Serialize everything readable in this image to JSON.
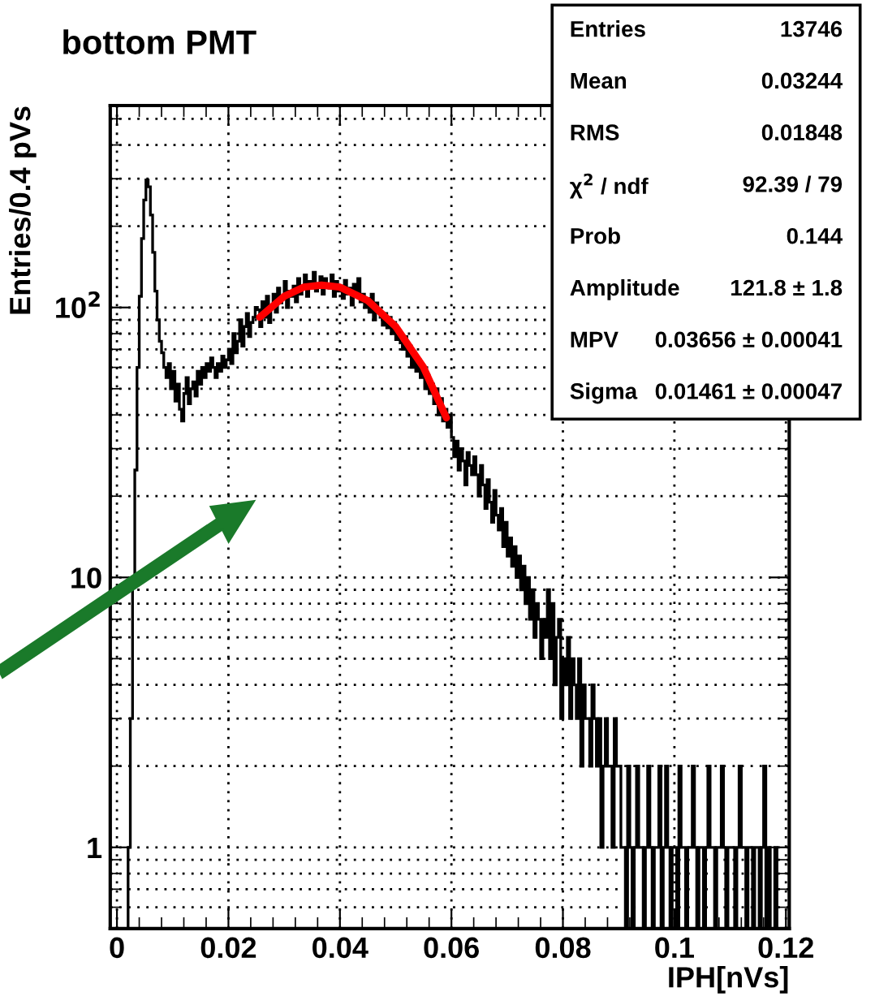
{
  "chart_data": {
    "type": "histogram",
    "title": "bottom PMT",
    "xlabel": "IPH[nVs]",
    "ylabel": "Entries/0.4 pVs",
    "bins": [
      0,
      0.0004,
      0.0008,
      0.0012,
      0.0016,
      0.002,
      0.0024,
      0.0028,
      0.0032,
      0.0036,
      0.004,
      0.0044,
      0.0048,
      0.0052,
      0.0056,
      0.006,
      0.0064,
      0.0068,
      0.0072,
      0.0076,
      0.008,
      0.0084,
      0.0088,
      0.0092,
      0.0096,
      0.01,
      0.0104,
      0.0108,
      0.0112,
      0.0116,
      0.012,
      0.0124,
      0.0128,
      0.0132,
      0.0136,
      0.014,
      0.0144,
      0.0148,
      0.0152,
      0.0156,
      0.016,
      0.0164,
      0.0168,
      0.0172,
      0.0176,
      0.018,
      0.0184,
      0.0188,
      0.0192,
      0.0196,
      0.02,
      0.0204,
      0.0208,
      0.0212,
      0.0216,
      0.022,
      0.0224,
      0.0228,
      0.0232,
      0.0236,
      0.024,
      0.0244,
      0.0248,
      0.0252,
      0.0256,
      0.026,
      0.0264,
      0.0268,
      0.0272,
      0.0276,
      0.028,
      0.0284,
      0.0288,
      0.0292,
      0.0296,
      0.03,
      0.0304,
      0.0308,
      0.0312,
      0.0316,
      0.032,
      0.0324,
      0.0328,
      0.0332,
      0.0336,
      0.034,
      0.0344,
      0.0348,
      0.0352,
      0.0356,
      0.036,
      0.0364,
      0.0368,
      0.0372,
      0.0376,
      0.038,
      0.0384,
      0.0388,
      0.0392,
      0.0396,
      0.04,
      0.0404,
      0.0408,
      0.0412,
      0.0416,
      0.042,
      0.0424,
      0.0428,
      0.0432,
      0.0436,
      0.044,
      0.0444,
      0.0448,
      0.0452,
      0.0456,
      0.046,
      0.0464,
      0.0468,
      0.0472,
      0.0476,
      0.048,
      0.0484,
      0.0488,
      0.0492,
      0.0496,
      0.05,
      0.0504,
      0.0508,
      0.0512,
      0.0516,
      0.052,
      0.0524,
      0.0528,
      0.0532,
      0.0536,
      0.054,
      0.0544,
      0.0548,
      0.0552,
      0.0556,
      0.056,
      0.0564,
      0.0568,
      0.0572,
      0.0576,
      0.058,
      0.0584,
      0.0588,
      0.0592,
      0.0596,
      0.06,
      0.0604,
      0.0608,
      0.0612,
      0.0616,
      0.062,
      0.0624,
      0.0628,
      0.0632,
      0.0636,
      0.064,
      0.0644,
      0.0648,
      0.0652,
      0.0656,
      0.066,
      0.0664,
      0.0668,
      0.0672,
      0.0676,
      0.068,
      0.0684,
      0.0688,
      0.0692,
      0.0696,
      0.07,
      0.0704,
      0.0708,
      0.0712,
      0.0716,
      0.072,
      0.0724,
      0.0728,
      0.0732,
      0.0736,
      0.074,
      0.0744,
      0.0748,
      0.0752,
      0.0756,
      0.076,
      0.0764,
      0.0768,
      0.0772,
      0.0776,
      0.078,
      0.0784,
      0.0788,
      0.0792,
      0.0796,
      0.08,
      0.0804,
      0.0808,
      0.0812,
      0.0816,
      0.082,
      0.0824,
      0.0828,
      0.0832,
      0.0836,
      0.084,
      0.0844,
      0.0848,
      0.0852,
      0.0856,
      0.086,
      0.0864,
      0.0868,
      0.0872,
      0.0876,
      0.088,
      0.0884,
      0.0888,
      0.0892,
      0.0896,
      0.09,
      0.0904,
      0.0908,
      0.0912,
      0.0916,
      0.092,
      0.0924,
      0.0928,
      0.0932,
      0.0936,
      0.094,
      0.0944,
      0.0948,
      0.0952,
      0.0956,
      0.096,
      0.0964,
      0.0968,
      0.0972,
      0.0976,
      0.098,
      0.0984,
      0.0988,
      0.0992,
      0.0996,
      0.1,
      0.1004,
      0.1008,
      0.1012,
      0.1016,
      0.102,
      0.1024,
      0.1028,
      0.1032,
      0.1036,
      0.104,
      0.1044,
      0.1048,
      0.1052,
      0.1056,
      0.106,
      0.1064,
      0.1068,
      0.1072,
      0.1076,
      0.108,
      0.1084,
      0.1088,
      0.1092,
      0.1096,
      0.11,
      0.1104,
      0.1108,
      0.1112,
      0.1116,
      0.112,
      0.1124,
      0.1128,
      0.1132,
      0.1136,
      0.114,
      0.1144,
      0.1148,
      0.1152,
      0.1156,
      0.116,
      0.1164,
      0.1168,
      0.1172,
      0.1176,
      0.118,
      0.1184,
      0.1188,
      0.1192,
      0.1196,
      0.12
    ],
    "values": [
      null,
      null,
      null,
      null,
      null,
      1,
      3,
      10,
      25,
      60,
      110,
      180,
      250,
      297,
      280,
      220,
      160,
      115,
      90,
      75,
      68,
      60,
      55,
      62,
      50,
      58,
      45,
      52,
      42,
      38,
      48,
      55,
      44,
      50,
      53,
      47,
      58,
      52,
      60,
      55,
      62,
      58,
      65,
      60,
      55,
      62,
      58,
      66,
      60,
      64,
      70,
      62,
      80,
      68,
      75,
      90,
      72,
      85,
      95,
      78,
      88,
      92,
      100,
      98,
      85,
      105,
      92,
      110,
      88,
      100,
      112,
      96,
      118,
      104,
      108,
      125,
      100,
      115,
      110,
      120,
      105,
      128,
      112,
      120,
      132,
      110,
      125,
      118,
      135,
      115,
      122,
      130,
      112,
      128,
      120,
      118,
      132,
      110,
      125,
      115,
      120,
      108,
      126,
      112,
      118,
      102,
      122,
      110,
      128,
      105,
      112,
      100,
      108,
      96,
      112,
      90,
      104,
      98,
      92,
      86,
      95,
      84,
      92,
      80,
      88,
      76,
      82,
      74,
      70,
      78,
      66,
      72,
      60,
      68,
      58,
      64,
      55,
      60,
      50,
      56,
      48,
      52,
      44,
      50,
      40,
      46,
      38,
      42,
      36,
      40,
      33,
      28,
      32,
      25,
      30,
      27,
      22,
      29,
      26,
      24,
      28,
      24,
      20,
      26,
      22,
      18,
      23,
      19,
      16,
      21,
      17,
      15,
      18,
      13,
      16,
      12,
      14,
      11,
      13,
      10,
      12,
      9,
      11,
      8,
      10,
      7,
      9,
      6,
      8,
      7,
      5,
      7,
      6,
      9,
      5,
      8,
      4,
      6,
      7,
      3,
      5,
      4,
      6,
      3,
      5,
      4,
      3,
      5,
      2,
      4,
      3,
      3,
      2,
      4,
      3,
      2,
      3,
      1,
      2,
      3,
      2,
      2,
      1,
      3,
      2,
      2,
      1,
      1,
      null,
      2,
      1,
      null,
      1,
      2,
      1,
      1,
      null,
      1,
      2,
      1,
      null,
      1,
      1,
      2,
      null,
      1,
      2,
      1,
      null,
      1,
      1,
      null,
      2,
      1,
      1,
      null,
      1,
      1,
      2,
      1,
      null,
      1,
      1,
      null,
      1,
      2,
      1,
      1,
      null,
      1,
      1,
      2,
      1,
      null,
      1,
      1,
      1,
      null,
      1,
      2,
      1,
      1,
      null,
      1,
      1,
      null,
      1,
      1,
      null,
      1,
      2,
      null,
      1,
      null,
      null,
      1,
      null,
      null,
      null,
      null
    ],
    "color": "#000000",
    "series": [
      {
        "type": "line",
        "color": "#ff0000",
        "x": [
          0.0256,
          0.03,
          0.0335,
          0.0367,
          0.04,
          0.045,
          0.05,
          0.055,
          0.0591
        ],
        "values": [
          92,
          110,
          119,
          121,
          119,
          106,
          85,
          60,
          39
        ]
      }
    ],
    "xlim": [
      -0.0012,
      0.1206
    ],
    "ylim": [
      0.5,
      560
    ],
    "log": "y",
    "xticks": [
      0,
      0.02,
      0.04,
      0.06,
      0.08,
      0.1,
      0.12
    ],
    "yticks": [
      1,
      10,
      {
        "value": 100,
        "label": "10$^{2}$"
      }
    ],
    "grid": true,
    "annotations": [
      "Entries",
      "13746",
      "Mean",
      "0.03244",
      "RMS",
      "0.01848",
      "χ$^{2}$ / ndf",
      "92.39 / 79",
      "Prob",
      "0.144",
      "Amplitude",
      "121.8 ± 1.8",
      "MPV",
      "0.03656 ± 0.00041",
      "Sigma",
      "0.01461 ± 0.00047"
    ]
  }
}
